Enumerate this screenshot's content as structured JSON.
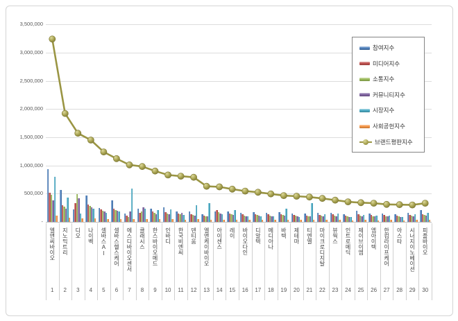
{
  "chart_data": {
    "type": "bar",
    "subtype": "grouped-bars-with-line-overlay",
    "title": "",
    "categories": [
      "엘앤씨바이오",
      "지노믹트리",
      "디오",
      "나이벡",
      "셀바스AI",
      "셀바스헬스케어",
      "에스디바이오센서",
      "클래시스",
      "한스바이오메드",
      "인바디",
      "한국비엔씨",
      "덴티움",
      "엘앤케이바이오",
      "아이센스",
      "레이",
      "바이오다인",
      "디알텍",
      "메디아나",
      "바텍",
      "제테마",
      "티엔엘",
      "마이크로디지탈",
      "뷰웍스",
      "인트로메딕",
      "제이브이엠",
      "엠아이텍",
      "한컴라이프케어",
      "아스타",
      "시너지이노베이션",
      "피플바이오"
    ],
    "ranks": [
      "1",
      "2",
      "3",
      "4",
      "5",
      "6",
      "7",
      "8",
      "9",
      "10",
      "11",
      "12",
      "13",
      "14",
      "15",
      "16",
      "17",
      "18",
      "19",
      "20",
      "21",
      "22",
      "23",
      "24",
      "25",
      "26",
      "27",
      "28",
      "29",
      "30"
    ],
    "series": [
      {
        "name": "참여지수",
        "type": "bar",
        "color": "#4F81BD",
        "values": [
          930000,
          560000,
          220000,
          470000,
          250000,
          380000,
          150000,
          240000,
          230000,
          260000,
          180000,
          180000,
          140000,
          190000,
          180000,
          165000,
          170000,
          160000,
          175000,
          150000,
          145000,
          155000,
          160000,
          140000,
          195000,
          150000,
          145000,
          135000,
          155000,
          205000
        ]
      },
      {
        "name": "미디어지수",
        "type": "bar",
        "color": "#C0504D",
        "values": [
          520000,
          300000,
          330000,
          310000,
          220000,
          240000,
          110000,
          160000,
          180000,
          170000,
          150000,
          140000,
          110000,
          215000,
          150000,
          130000,
          140000,
          130000,
          140000,
          125000,
          115000,
          125000,
          130000,
          115000,
          130000,
          120000,
          120000,
          110000,
          125000,
          140000
        ]
      },
      {
        "name": "소통지수",
        "type": "bar",
        "color": "#9BBB59",
        "values": [
          480000,
          270000,
          490000,
          280000,
          200000,
          210000,
          90000,
          190000,
          160000,
          150000,
          130000,
          120000,
          100000,
          170000,
          130000,
          115000,
          120000,
          115000,
          120000,
          110000,
          100000,
          110000,
          115000,
          100000,
          110000,
          105000,
          105000,
          95000,
          110000,
          120000
        ]
      },
      {
        "name": "커뮤니티지수",
        "type": "bar",
        "color": "#8064A2",
        "values": [
          380000,
          240000,
          420000,
          260000,
          190000,
          200000,
          180000,
          260000,
          140000,
          140000,
          160000,
          110000,
          95000,
          150000,
          120000,
          105000,
          110000,
          105000,
          110000,
          100000,
          95000,
          100000,
          105000,
          90000,
          100000,
          95000,
          95000,
          90000,
          100000,
          110000
        ]
      },
      {
        "name": "시장지수",
        "type": "bar",
        "color": "#4BACC6",
        "values": [
          800000,
          430000,
          150000,
          240000,
          160000,
          180000,
          585000,
          230000,
          210000,
          220000,
          120000,
          295000,
          330000,
          130000,
          215000,
          95000,
          100000,
          95000,
          235000,
          90000,
          330000,
          140000,
          150000,
          85000,
          120000,
          110000,
          115000,
          85000,
          130000,
          160000
        ]
      },
      {
        "name": "사회공헌지수",
        "type": "bar",
        "color": "#F79646",
        "values": [
          110000,
          70000,
          60000,
          60000,
          50000,
          50000,
          45000,
          50000,
          45000,
          45000,
          40000,
          45000,
          40000,
          40000,
          40000,
          35000,
          35000,
          35000,
          40000,
          35000,
          35000,
          35000,
          35000,
          30000,
          35000,
          30000,
          35000,
          30000,
          35000,
          40000
        ]
      },
      {
        "name": "브랜드평판지수",
        "type": "line",
        "color": "#9A9543",
        "marker_fill": "#A8A351",
        "marker_edge": "#7D7834",
        "values": [
          3240000,
          1920000,
          1570000,
          1450000,
          1240000,
          1120000,
          1010000,
          980000,
          900000,
          830000,
          810000,
          790000,
          630000,
          620000,
          580000,
          545000,
          525000,
          495000,
          465000,
          455000,
          440000,
          415000,
          385000,
          355000,
          340000,
          330000,
          310000,
          305000,
          300000,
          330000
        ]
      }
    ],
    "y_axis": {
      "min": 0,
      "max": 3500000,
      "step": 500000,
      "tick_labels": [
        "500,000",
        "1,000,000",
        "1,500,000",
        "2,000,000",
        "2,500,000",
        "3,000,000",
        "3,500,000"
      ],
      "zero_label": "-"
    },
    "x_axis": {
      "label_orientation": "vertical-stacked"
    },
    "legend_position": "upper-right",
    "grid": true
  }
}
